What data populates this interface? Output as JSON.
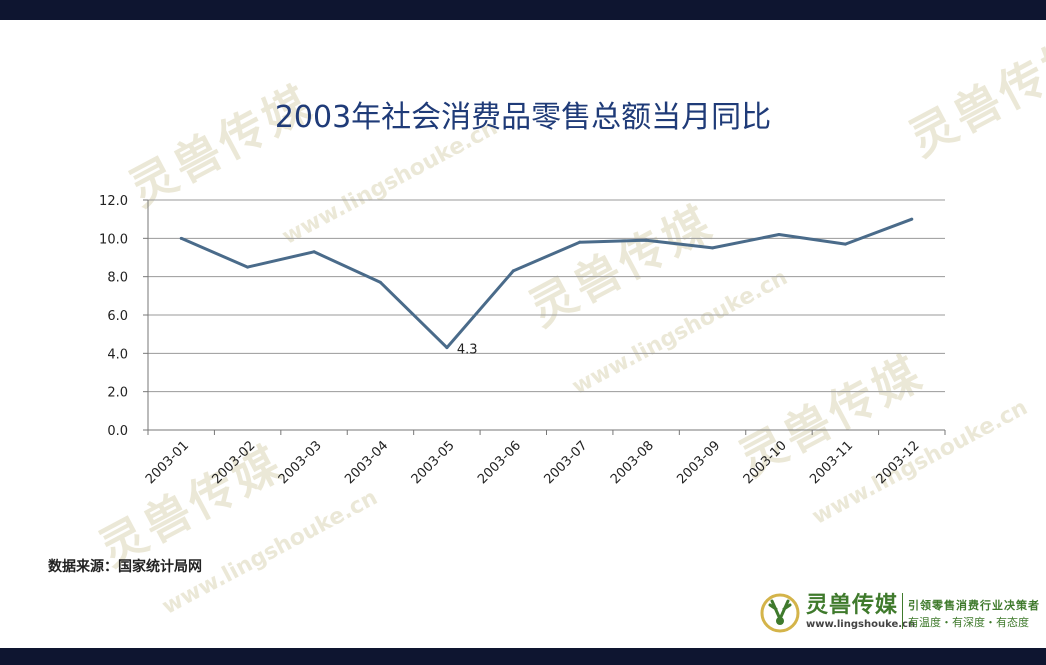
{
  "header": {
    "title": "2003年社会消费品零售总额当月同比"
  },
  "chart_data": {
    "type": "line",
    "title": "2003年社会消费品零售总额当月同比",
    "categories": [
      "2003-01",
      "2003-02",
      "2003-03",
      "2003-04",
      "2003-05",
      "2003-06",
      "2003-07",
      "2003-08",
      "2003-09",
      "2003-10",
      "2003-11",
      "2003-12"
    ],
    "series": [
      {
        "values": [
          10.0,
          8.5,
          9.3,
          7.7,
          4.3,
          8.3,
          9.8,
          9.9,
          9.5,
          10.2,
          9.7,
          11.0
        ]
      }
    ],
    "ylim": [
      0,
      12
    ],
    "yticks": [
      "0.0",
      "2.0",
      "4.0",
      "6.0",
      "8.0",
      "10.0",
      "12.0"
    ],
    "annotations": [
      {
        "category": "2003-05",
        "text": "4.3"
      }
    ],
    "grid": true,
    "line_color": "#4a6b8a"
  },
  "footer": {
    "source": "数据来源：国家统计局网"
  },
  "watermark": {
    "text": "灵兽传媒",
    "url": "www.lingshouke.cn"
  },
  "brand": {
    "name": "灵兽传媒",
    "url": "www.lingshouke.cn",
    "slogan_line1": "引领零售消费行业决策者",
    "slogan_line2": "有温度・有深度・有态度",
    "accent_color": "#3f7a2c"
  }
}
